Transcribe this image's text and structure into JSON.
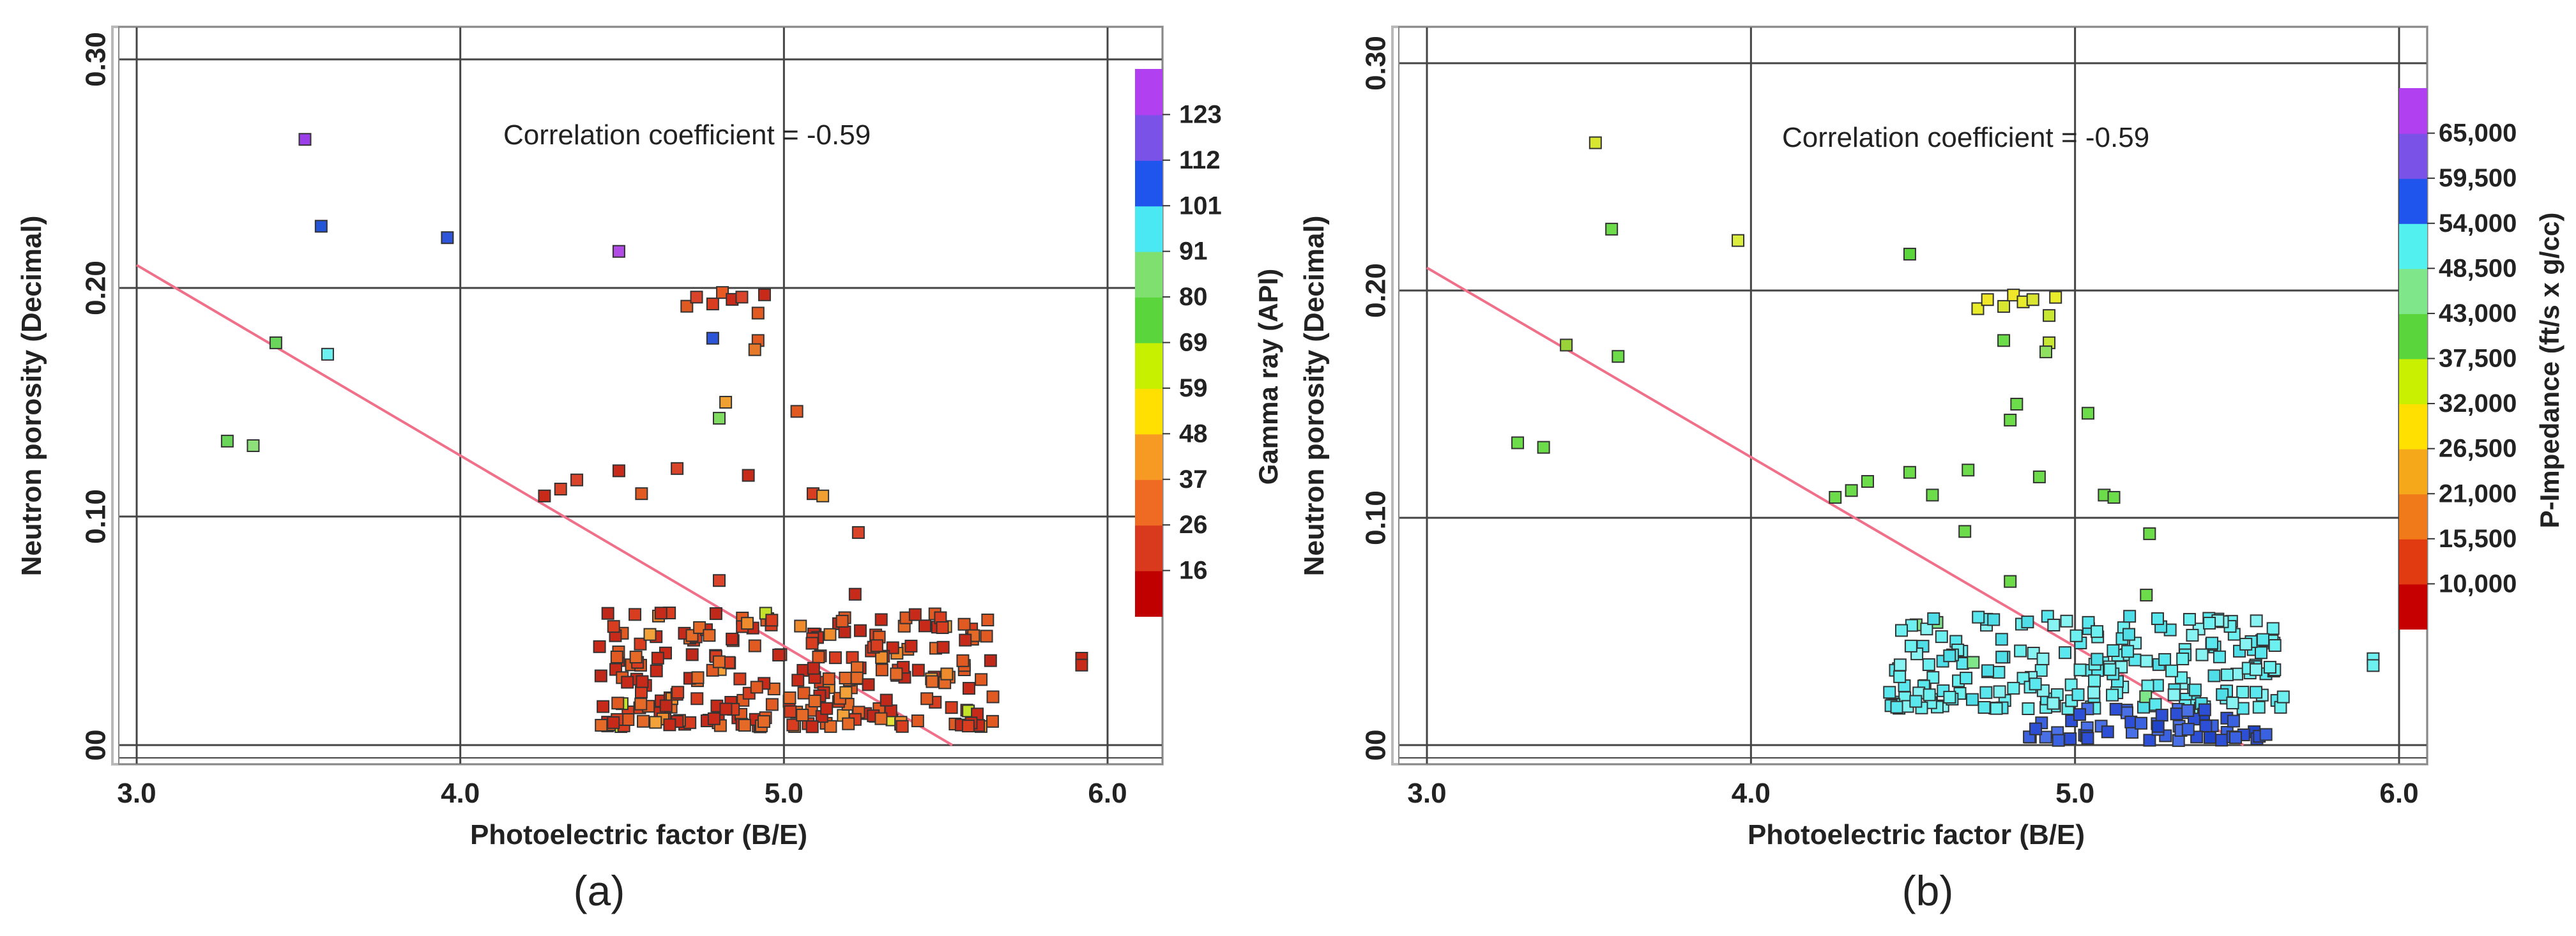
{
  "figure": {
    "panels": [
      {
        "label": "(a)"
      },
      {
        "label": "(b)"
      }
    ]
  },
  "chart_data": [
    {
      "type": "scatter",
      "id": "a",
      "panel_label": "(a)",
      "xlabel": "Photoelectric factor (B/E)",
      "ylabel": "Neutron porosity (Decimal)",
      "xlim": [
        2.95,
        6.1
      ],
      "ylim": [
        -0.005,
        0.315
      ],
      "xticks": [
        3.0,
        4.0,
        5.0,
        6.0
      ],
      "xtick_labels": [
        "3.0",
        "4.0",
        "5.0",
        "6.0"
      ],
      "yticks": [
        0.0,
        0.1,
        0.2,
        0.3
      ],
      "ytick_labels": [
        "00",
        "0.10",
        "0.20",
        "0.30"
      ],
      "grid": true,
      "annotation": "Correlation coefficient = -0.59",
      "trendline": {
        "x": [
          3.0,
          5.52
        ],
        "y": [
          0.21,
          0.0
        ],
        "color": "#f0708a"
      },
      "colorbar": {
        "title": "Gamma ray (API)",
        "bands": [
          "#c00000",
          "#d93a1e",
          "#ef6a22",
          "#f79a24",
          "#ffe000",
          "#c6f000",
          "#5ad63c",
          "#7fe070",
          "#49e8f2",
          "#1f55ec",
          "#7a52e8",
          "#b040f0"
        ],
        "labels": [
          "16",
          "26",
          "37",
          "48",
          "59",
          "69",
          "80",
          "91",
          "101",
          "112",
          "123"
        ]
      },
      "points": [
        {
          "x": 3.52,
          "y": 0.265,
          "c": "#9b3fe8"
        },
        {
          "x": 3.57,
          "y": 0.227,
          "c": "#2355d8"
        },
        {
          "x": 3.96,
          "y": 0.222,
          "c": "#2f55d8"
        },
        {
          "x": 4.49,
          "y": 0.216,
          "c": "#b24ae6"
        },
        {
          "x": 3.43,
          "y": 0.176,
          "c": "#6bd45a"
        },
        {
          "x": 3.59,
          "y": 0.171,
          "c": "#6cf0f0"
        },
        {
          "x": 3.28,
          "y": 0.133,
          "c": "#6bd45a"
        },
        {
          "x": 3.36,
          "y": 0.131,
          "c": "#8ee07a"
        },
        {
          "x": 4.78,
          "y": 0.178,
          "c": "#2d55d8"
        },
        {
          "x": 4.82,
          "y": 0.15,
          "c": "#f0a030"
        },
        {
          "x": 4.8,
          "y": 0.143,
          "c": "#7fdc60"
        },
        {
          "x": 4.7,
          "y": 0.192,
          "c": "#e05a22"
        },
        {
          "x": 4.73,
          "y": 0.196,
          "c": "#d9442a"
        },
        {
          "x": 4.78,
          "y": 0.193,
          "c": "#d83d1f"
        },
        {
          "x": 4.81,
          "y": 0.198,
          "c": "#e85a22"
        },
        {
          "x": 4.84,
          "y": 0.195,
          "c": "#c82a1a"
        },
        {
          "x": 4.87,
          "y": 0.196,
          "c": "#d9442a"
        },
        {
          "x": 4.92,
          "y": 0.189,
          "c": "#e05a22"
        },
        {
          "x": 4.94,
          "y": 0.197,
          "c": "#c82a1a"
        },
        {
          "x": 4.92,
          "y": 0.177,
          "c": "#e05a22"
        },
        {
          "x": 4.91,
          "y": 0.173,
          "c": "#e77a2a"
        },
        {
          "x": 4.26,
          "y": 0.109,
          "c": "#c82a1a"
        },
        {
          "x": 4.31,
          "y": 0.112,
          "c": "#d9442a"
        },
        {
          "x": 4.36,
          "y": 0.116,
          "c": "#d9442a"
        },
        {
          "x": 4.49,
          "y": 0.12,
          "c": "#c82a1a"
        },
        {
          "x": 4.56,
          "y": 0.11,
          "c": "#e05a22"
        },
        {
          "x": 4.67,
          "y": 0.121,
          "c": "#d9442a"
        },
        {
          "x": 4.89,
          "y": 0.118,
          "c": "#c82a1a"
        },
        {
          "x": 5.04,
          "y": 0.146,
          "c": "#e05a22"
        },
        {
          "x": 5.09,
          "y": 0.11,
          "c": "#d83d1f"
        },
        {
          "x": 5.12,
          "y": 0.109,
          "c": "#f0a030"
        },
        {
          "x": 5.23,
          "y": 0.093,
          "c": "#d9442a"
        },
        {
          "x": 4.8,
          "y": 0.072,
          "c": "#d9442a"
        },
        {
          "x": 5.22,
          "y": 0.066,
          "c": "#c82a1a"
        },
        {
          "x": 5.92,
          "y": 0.038,
          "c": "#c82a1a"
        },
        {
          "x": 5.92,
          "y": 0.035,
          "c": "#c82a1a"
        }
      ],
      "clusters": [
        {
          "x": [
            4.42,
            5.66
          ],
          "y": [
            0.008,
            0.058
          ],
          "n": 260,
          "colors": [
            "#c82a1a",
            "#d83d1f",
            "#e05a22",
            "#e56a28",
            "#c0281a",
            "#ee8b2c",
            "#f3a23a",
            "#c4e22a",
            "#e2e23a"
          ],
          "weights": [
            26,
            22,
            20,
            14,
            10,
            5,
            3,
            1,
            1
          ],
          "seed": 17
        }
      ]
    },
    {
      "type": "scatter",
      "id": "b",
      "panel_label": "(b)",
      "xlabel": "Photoelectric factor (B/E)",
      "ylabel": "Neutron porosity (Decimal)",
      "xlim": [
        2.95,
        6.1
      ],
      "ylim": [
        -0.005,
        0.315
      ],
      "xticks": [
        3.0,
        4.0,
        5.0,
        6.0
      ],
      "xtick_labels": [
        "3.0",
        "4.0",
        "5.0",
        "6.0"
      ],
      "yticks": [
        0.0,
        0.1,
        0.2,
        0.3
      ],
      "ytick_labels": [
        "00",
        "0.10",
        "0.20",
        "0.30"
      ],
      "grid": true,
      "annotation": "Correlation coefficient = -0.59",
      "trendline": {
        "x": [
          3.0,
          5.52
        ],
        "y": [
          0.21,
          0.0
        ],
        "color": "#f0708a"
      },
      "colorbar": {
        "title": "P-Impedance (ft/s x g/cc)",
        "bands": [
          "#c60000",
          "#e13b12",
          "#f07a1a",
          "#f5a81a",
          "#ffe000",
          "#c8f000",
          "#5ad63c",
          "#7fe78a",
          "#52f0ee",
          "#1f55ec",
          "#7a52e8",
          "#b040f0"
        ],
        "labels": [
          "10,000",
          "15,500",
          "21,000",
          "26,500",
          "32,000",
          "37,500",
          "43,000",
          "48,500",
          "54,000",
          "59,500",
          "65,000"
        ]
      },
      "points": [
        {
          "x": 3.52,
          "y": 0.265,
          "c": "#d8e632"
        },
        {
          "x": 3.57,
          "y": 0.227,
          "c": "#6cdc4a"
        },
        {
          "x": 3.96,
          "y": 0.222,
          "c": "#dbee40"
        },
        {
          "x": 4.49,
          "y": 0.216,
          "c": "#5ad63c"
        },
        {
          "x": 3.43,
          "y": 0.176,
          "c": "#9ad23a"
        },
        {
          "x": 3.59,
          "y": 0.171,
          "c": "#6cdc4a"
        },
        {
          "x": 3.28,
          "y": 0.133,
          "c": "#6cdc4a"
        },
        {
          "x": 3.36,
          "y": 0.131,
          "c": "#6cdc4a"
        },
        {
          "x": 4.7,
          "y": 0.192,
          "c": "#e8ec2a"
        },
        {
          "x": 4.73,
          "y": 0.196,
          "c": "#f0e62a"
        },
        {
          "x": 4.78,
          "y": 0.193,
          "c": "#d8e632"
        },
        {
          "x": 4.81,
          "y": 0.198,
          "c": "#f0e62a"
        },
        {
          "x": 4.84,
          "y": 0.195,
          "c": "#e8ec2a"
        },
        {
          "x": 4.87,
          "y": 0.196,
          "c": "#d8e632"
        },
        {
          "x": 4.92,
          "y": 0.189,
          "c": "#c8e634"
        },
        {
          "x": 4.94,
          "y": 0.197,
          "c": "#e8ec2a"
        },
        {
          "x": 4.92,
          "y": 0.177,
          "c": "#c8e634"
        },
        {
          "x": 4.91,
          "y": 0.173,
          "c": "#8fe060"
        },
        {
          "x": 4.78,
          "y": 0.178,
          "c": "#6cdc4a"
        },
        {
          "x": 4.82,
          "y": 0.15,
          "c": "#6cdc4a"
        },
        {
          "x": 4.8,
          "y": 0.143,
          "c": "#6cdc4a"
        },
        {
          "x": 4.26,
          "y": 0.109,
          "c": "#6cdc4a"
        },
        {
          "x": 4.31,
          "y": 0.112,
          "c": "#6cdc4a"
        },
        {
          "x": 4.36,
          "y": 0.116,
          "c": "#6cdc4a"
        },
        {
          "x": 4.49,
          "y": 0.12,
          "c": "#6cdc4a"
        },
        {
          "x": 4.56,
          "y": 0.11,
          "c": "#6cdc4a"
        },
        {
          "x": 4.67,
          "y": 0.121,
          "c": "#6cdc4a"
        },
        {
          "x": 4.89,
          "y": 0.118,
          "c": "#6cdc4a"
        },
        {
          "x": 5.04,
          "y": 0.146,
          "c": "#6cdc4a"
        },
        {
          "x": 5.09,
          "y": 0.11,
          "c": "#6cdc4a"
        },
        {
          "x": 5.12,
          "y": 0.109,
          "c": "#6cdc4a"
        },
        {
          "x": 5.23,
          "y": 0.093,
          "c": "#6cdc4a"
        },
        {
          "x": 4.66,
          "y": 0.094,
          "c": "#6cdc4a"
        },
        {
          "x": 4.8,
          "y": 0.072,
          "c": "#6cdc4a"
        },
        {
          "x": 5.22,
          "y": 0.066,
          "c": "#6cdc4a"
        },
        {
          "x": 5.92,
          "y": 0.038,
          "c": "#6cf0f0"
        },
        {
          "x": 5.92,
          "y": 0.035,
          "c": "#6cf0f0"
        }
      ],
      "clusters": [
        {
          "x": [
            4.42,
            5.66
          ],
          "y": [
            0.016,
            0.058
          ],
          "n": 210,
          "colors": [
            "#6cf0f0",
            "#5ae8ee",
            "#88f3f3",
            "#4fdde8",
            "#7fe78a"
          ],
          "weights": [
            40,
            25,
            20,
            12,
            3
          ],
          "seed": 29
        },
        {
          "x": [
            4.85,
            5.6
          ],
          "y": [
            0.002,
            0.016
          ],
          "n": 55,
          "colors": [
            "#2c4fd6",
            "#3a62e0",
            "#1f44c8",
            "#4a70e8"
          ],
          "weights": [
            30,
            25,
            20,
            15
          ],
          "seed": 41
        }
      ]
    }
  ]
}
